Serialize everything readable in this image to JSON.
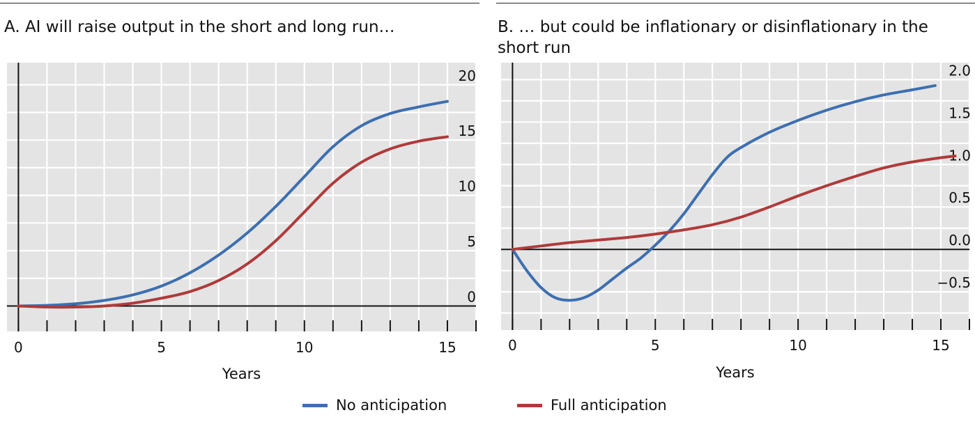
{
  "chart_data": [
    {
      "type": "line",
      "title": "A. AI will raise output in the short and long run…",
      "xlabel": "Years",
      "ylabel": "",
      "xlim": [
        -0.4,
        16
      ],
      "ylim": [
        -2.3,
        22
      ],
      "x_ticks": [
        0,
        5,
        10,
        15
      ],
      "y_ticks": [
        0,
        5,
        10,
        15,
        20
      ],
      "y_axis_side": "right",
      "grid": true,
      "series": [
        {
          "name": "No anticipation",
          "color": "#3d6fb0",
          "x": [
            0,
            1,
            2,
            3,
            4,
            5,
            6,
            7,
            8,
            9,
            10,
            11,
            12,
            13,
            14,
            15
          ],
          "y": [
            0,
            0.05,
            0.2,
            0.5,
            1.0,
            1.8,
            3.0,
            4.6,
            6.6,
            9.0,
            11.7,
            14.4,
            16.3,
            17.4,
            18.0,
            18.5
          ]
        },
        {
          "name": "Full anticipation",
          "color": "#b03a3a",
          "x": [
            0,
            1,
            2,
            3,
            4,
            5,
            6,
            7,
            8,
            9,
            10,
            11,
            12,
            13,
            14,
            15
          ],
          "y": [
            0,
            -0.1,
            -0.1,
            0.0,
            0.25,
            0.7,
            1.3,
            2.3,
            3.8,
            5.9,
            8.5,
            11.1,
            13.0,
            14.2,
            14.9,
            15.3
          ]
        }
      ]
    },
    {
      "type": "line",
      "title": "B. … but could be inflationary or disinflationary in the short run",
      "xlabel": "Years",
      "ylabel": "",
      "xlim": [
        -0.4,
        16
      ],
      "ylim": [
        -0.95,
        2.2
      ],
      "x_ticks": [
        0,
        5,
        10,
        15
      ],
      "y_ticks": [
        -0.5,
        0.0,
        0.5,
        1.0,
        1.5,
        2.0
      ],
      "y_tick_labels": [
        "−0.5",
        "0.0",
        "0.5",
        "1.0",
        "1.5",
        "2.0"
      ],
      "y_axis_side": "right",
      "grid": true,
      "series": [
        {
          "name": "No anticipation",
          "color": "#3d6fb0",
          "x": [
            0,
            0.5,
            1,
            1.5,
            2,
            2.5,
            3,
            3.5,
            4,
            4.5,
            5,
            5.5,
            6,
            6.5,
            7,
            7.5,
            8,
            9,
            10,
            11,
            12,
            13,
            14,
            14.8
          ],
          "y": [
            0,
            -0.25,
            -0.45,
            -0.57,
            -0.6,
            -0.57,
            -0.48,
            -0.35,
            -0.22,
            -0.1,
            0.05,
            0.22,
            0.42,
            0.65,
            0.88,
            1.08,
            1.2,
            1.38,
            1.52,
            1.64,
            1.74,
            1.82,
            1.88,
            1.93
          ]
        },
        {
          "name": "Full anticipation",
          "color": "#b03a3a",
          "x": [
            0,
            1,
            2,
            3,
            4,
            5,
            6,
            7,
            8,
            9,
            10,
            11,
            12,
            13,
            14,
            15,
            15.5
          ],
          "y": [
            0,
            0.04,
            0.08,
            0.11,
            0.14,
            0.18,
            0.23,
            0.29,
            0.38,
            0.5,
            0.63,
            0.75,
            0.86,
            0.96,
            1.03,
            1.08,
            1.1
          ]
        }
      ]
    }
  ],
  "legend": {
    "no_anticipation": "No anticipation",
    "full_anticipation": "Full anticipation",
    "no_anticipation_color": "#3d6fb0",
    "full_anticipation_color": "#b03a3a"
  }
}
